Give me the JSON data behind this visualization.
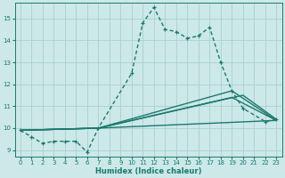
{
  "xlabel": "Humidex (Indice chaleur)",
  "bg_color": "#cce8e8",
  "line_color": "#1a7a6e",
  "grid_color": "#aacfcf",
  "xlim": [
    -0.5,
    23.5
  ],
  "ylim": [
    8.7,
    15.7
  ],
  "xticks": [
    0,
    1,
    2,
    3,
    4,
    5,
    6,
    7,
    8,
    9,
    10,
    11,
    12,
    13,
    14,
    15,
    16,
    17,
    18,
    19,
    20,
    21,
    22,
    23
  ],
  "yticks": [
    9,
    10,
    11,
    12,
    13,
    14,
    15
  ],
  "main_line": {
    "x": [
      0,
      1,
      2,
      3,
      4,
      5,
      6,
      7,
      10,
      11,
      12,
      13,
      14,
      15,
      16,
      17,
      18,
      19,
      20,
      22,
      23
    ],
    "y": [
      9.9,
      9.6,
      9.3,
      9.4,
      9.4,
      9.4,
      8.9,
      10.0,
      12.5,
      14.8,
      15.5,
      14.5,
      14.4,
      14.1,
      14.2,
      14.6,
      13.0,
      11.7,
      10.9,
      10.3,
      10.4
    ]
  },
  "smooth_lines": [
    {
      "x": [
        0,
        7,
        19,
        23
      ],
      "y": [
        9.9,
        10.0,
        11.7,
        10.35
      ]
    },
    {
      "x": [
        0,
        7,
        19,
        23
      ],
      "y": [
        9.9,
        10.0,
        11.4,
        10.35
      ]
    },
    {
      "x": [
        0,
        7,
        20,
        23
      ],
      "y": [
        9.9,
        10.0,
        11.5,
        10.4
      ]
    },
    {
      "x": [
        0,
        7,
        23
      ],
      "y": [
        9.9,
        10.0,
        10.35
      ]
    }
  ]
}
